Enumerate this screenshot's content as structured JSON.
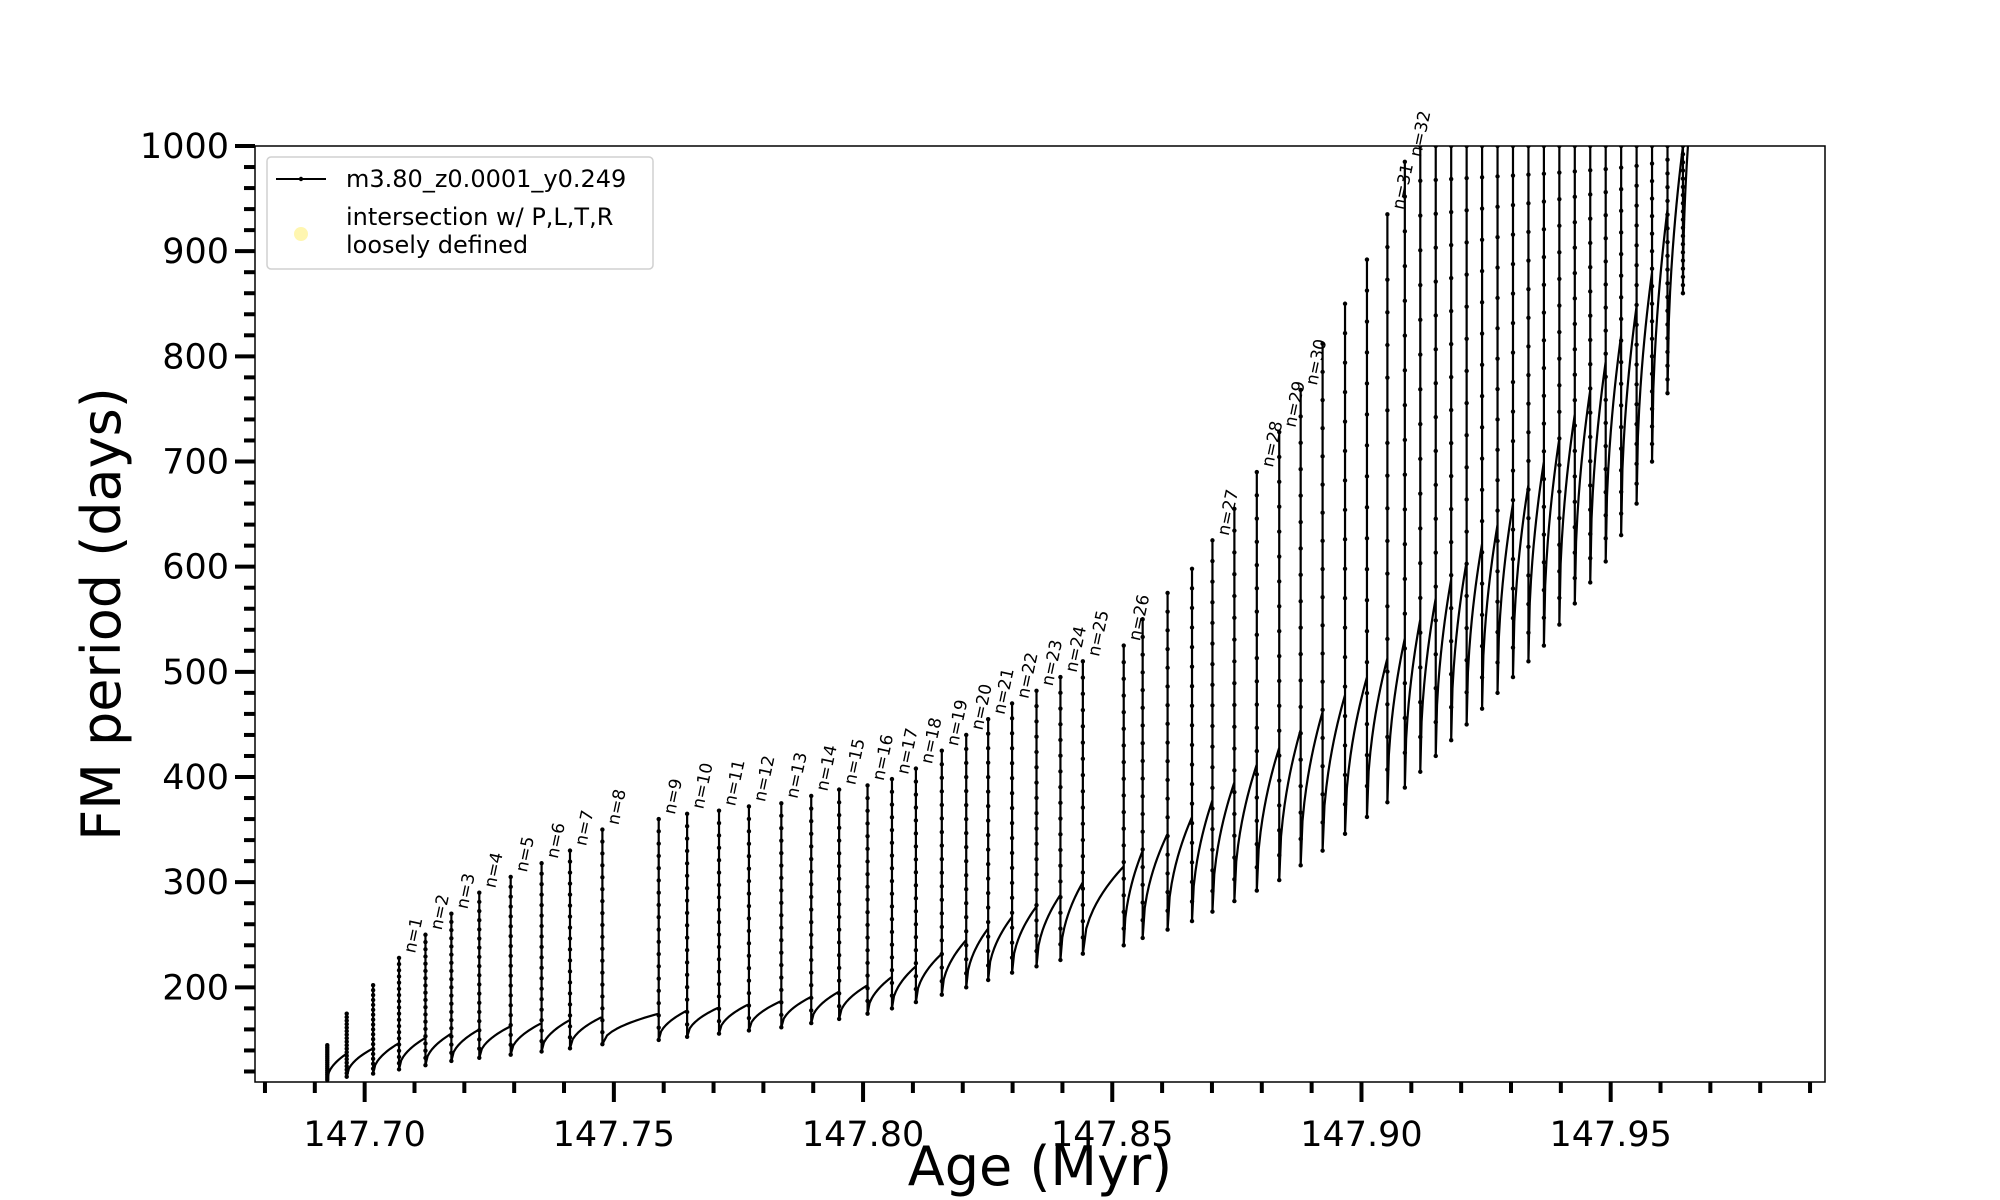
{
  "chart_data": {
    "type": "line",
    "xlabel": "Age (Myr)",
    "ylabel": "FM period (days)",
    "xlim": [
      147.678,
      147.993
    ],
    "ylim": [
      110,
      1000
    ],
    "x_major_ticks": [
      147.7,
      147.75,
      147.8,
      147.85,
      147.9,
      147.95
    ],
    "x_tick_labels": [
      "147.70",
      "147.75",
      "147.80",
      "147.85",
      "147.90",
      "147.95"
    ],
    "y_major_ticks": [
      200,
      300,
      400,
      500,
      600,
      700,
      800,
      900,
      1000
    ],
    "y_tick_labels": [
      "200",
      "300",
      "400",
      "500",
      "600",
      "700",
      "800",
      "900",
      "1000"
    ],
    "legend": {
      "placement": "upper-left",
      "entries": [
        {
          "label": "m3.80_z0.0001_y0.249",
          "marker": "line-dots",
          "color": "#000000"
        },
        {
          "label_lines": [
            "intersection w/ P,L,T,R",
            "loosely defined"
          ],
          "marker": "circle",
          "color": "#fff6b0"
        }
      ]
    },
    "series": [
      {
        "name": "m3.80_z0.0001_y0.249",
        "color": "#000000",
        "pulses": [
          {
            "age": 147.6925,
            "peak": 145,
            "dip": 112,
            "base": 130
          },
          {
            "age": 147.6964,
            "peak": 175,
            "dip": 115,
            "base": 137
          },
          {
            "age": 147.7017,
            "peak": 202,
            "dip": 118,
            "base": 142
          },
          {
            "age": 147.7069,
            "peak": 228,
            "dip": 122,
            "base": 147
          },
          {
            "age": 147.7122,
            "peak": 250,
            "dip": 126,
            "base": 152
          },
          {
            "age": 147.7174,
            "peak": 270,
            "dip": 130,
            "base": 156
          },
          {
            "age": 147.723,
            "peak": 290,
            "dip": 133,
            "base": 160
          },
          {
            "age": 147.7293,
            "peak": 305,
            "dip": 136,
            "base": 163
          },
          {
            "age": 147.7355,
            "peak": 318,
            "dip": 139,
            "base": 166
          },
          {
            "age": 147.7412,
            "peak": 330,
            "dip": 142,
            "base": 169
          },
          {
            "age": 147.7477,
            "peak": 350,
            "dip": 146,
            "base": 172
          },
          {
            "age": 147.759,
            "peak": 360,
            "dip": 150,
            "base": 175
          },
          {
            "age": 147.7647,
            "peak": 365,
            "dip": 153,
            "base": 178
          },
          {
            "age": 147.7711,
            "peak": 368,
            "dip": 156,
            "base": 181
          },
          {
            "age": 147.7771,
            "peak": 372,
            "dip": 159,
            "base": 184
          },
          {
            "age": 147.7836,
            "peak": 375,
            "dip": 162,
            "base": 187
          },
          {
            "age": 147.7896,
            "peak": 382,
            "dip": 166,
            "base": 191
          },
          {
            "age": 147.7952,
            "peak": 388,
            "dip": 170,
            "base": 196
          },
          {
            "age": 147.8009,
            "peak": 392,
            "dip": 175,
            "base": 202
          },
          {
            "age": 147.8058,
            "peak": 398,
            "dip": 180,
            "base": 210
          },
          {
            "age": 147.8106,
            "peak": 408,
            "dip": 186,
            "base": 220
          },
          {
            "age": 147.8158,
            "peak": 425,
            "dip": 193,
            "base": 232
          },
          {
            "age": 147.8207,
            "peak": 440,
            "dip": 200,
            "base": 245
          },
          {
            "age": 147.8251,
            "peak": 455,
            "dip": 207,
            "base": 256
          },
          {
            "age": 147.8299,
            "peak": 470,
            "dip": 214,
            "base": 267
          },
          {
            "age": 147.8348,
            "peak": 482,
            "dip": 220,
            "base": 277
          },
          {
            "age": 147.8396,
            "peak": 495,
            "dip": 226,
            "base": 288
          },
          {
            "age": 147.8441,
            "peak": 510,
            "dip": 232,
            "base": 300
          },
          {
            "age": 147.8523,
            "peak": 525,
            "dip": 240,
            "base": 315
          },
          {
            "age": 147.8561,
            "peak": 550,
            "dip": 247,
            "base": 330
          },
          {
            "age": 147.8611,
            "peak": 575,
            "dip": 255,
            "base": 346
          },
          {
            "age": 147.866,
            "peak": 598,
            "dip": 263,
            "base": 362
          },
          {
            "age": 147.8701,
            "peak": 625,
            "dip": 272,
            "base": 378
          },
          {
            "age": 147.8745,
            "peak": 655,
            "dip": 282,
            "base": 395
          },
          {
            "age": 147.879,
            "peak": 690,
            "dip": 292,
            "base": 412
          },
          {
            "age": 147.8835,
            "peak": 728,
            "dip": 302,
            "base": 428
          },
          {
            "age": 147.8878,
            "peak": 768,
            "dip": 316,
            "base": 445
          },
          {
            "age": 147.8922,
            "peak": 812,
            "dip": 330,
            "base": 462
          },
          {
            "age": 147.8967,
            "peak": 850,
            "dip": 346,
            "base": 478
          },
          {
            "age": 147.9011,
            "peak": 892,
            "dip": 362,
            "base": 495
          },
          {
            "age": 147.9052,
            "peak": 935,
            "dip": 376,
            "base": 513
          },
          {
            "age": 147.9087,
            "peak": 985,
            "dip": 390,
            "base": 532
          },
          {
            "age": 147.9118,
            "peak": 1000,
            "dip": 405,
            "base": 550
          },
          {
            "age": 147.9149,
            "peak": 1000,
            "dip": 420,
            "base": 570
          },
          {
            "age": 147.918,
            "peak": 1000,
            "dip": 435,
            "base": 588
          },
          {
            "age": 147.9211,
            "peak": 1000,
            "dip": 450,
            "base": 605
          },
          {
            "age": 147.9242,
            "peak": 1000,
            "dip": 465,
            "base": 622
          },
          {
            "age": 147.9273,
            "peak": 1000,
            "dip": 480,
            "base": 640
          },
          {
            "age": 147.9304,
            "peak": 1000,
            "dip": 495,
            "base": 660
          },
          {
            "age": 147.9335,
            "peak": 1000,
            "dip": 510,
            "base": 678
          },
          {
            "age": 147.9366,
            "peak": 1000,
            "dip": 525,
            "base": 700
          },
          {
            "age": 147.9397,
            "peak": 1000,
            "dip": 545,
            "base": 722
          },
          {
            "age": 147.9428,
            "peak": 1000,
            "dip": 565,
            "base": 745
          },
          {
            "age": 147.9459,
            "peak": 1000,
            "dip": 585,
            "base": 768
          },
          {
            "age": 147.949,
            "peak": 1000,
            "dip": 605,
            "base": 795
          },
          {
            "age": 147.9521,
            "peak": 1000,
            "dip": 630,
            "base": 820
          },
          {
            "age": 147.9552,
            "peak": 1000,
            "dip": 660,
            "base": 848
          },
          {
            "age": 147.9583,
            "peak": 1000,
            "dip": 700,
            "base": 880
          },
          {
            "age": 147.9614,
            "peak": 1000,
            "dip": 765,
            "base": 940
          },
          {
            "age": 147.9645,
            "peak": 1000,
            "dip": 860,
            "base": 1000
          }
        ]
      }
    ],
    "annotations": [
      {
        "text": "n=1",
        "x": 147.7069,
        "y": 228
      },
      {
        "text": "n=2",
        "x": 147.7122,
        "y": 250
      },
      {
        "text": "n=3",
        "x": 147.7174,
        "y": 270
      },
      {
        "text": "n=4",
        "x": 147.723,
        "y": 290
      },
      {
        "text": "n=5",
        "x": 147.7293,
        "y": 305
      },
      {
        "text": "n=6",
        "x": 147.7355,
        "y": 318
      },
      {
        "text": "n=7",
        "x": 147.7412,
        "y": 330
      },
      {
        "text": "n=8",
        "x": 147.7477,
        "y": 350
      },
      {
        "text": "n=9",
        "x": 147.759,
        "y": 360
      },
      {
        "text": "n=10",
        "x": 147.7647,
        "y": 365
      },
      {
        "text": "n=11",
        "x": 147.7711,
        "y": 368
      },
      {
        "text": "n=12",
        "x": 147.7771,
        "y": 372
      },
      {
        "text": "n=13",
        "x": 147.7836,
        "y": 375
      },
      {
        "text": "n=14",
        "x": 147.7896,
        "y": 382
      },
      {
        "text": "n=15",
        "x": 147.7952,
        "y": 388
      },
      {
        "text": "n=16",
        "x": 147.8009,
        "y": 392
      },
      {
        "text": "n=17",
        "x": 147.8058,
        "y": 398
      },
      {
        "text": "n=18",
        "x": 147.8106,
        "y": 408
      },
      {
        "text": "n=19",
        "x": 147.8158,
        "y": 425
      },
      {
        "text": "n=20",
        "x": 147.8207,
        "y": 440
      },
      {
        "text": "n=21",
        "x": 147.8251,
        "y": 455
      },
      {
        "text": "n=22",
        "x": 147.8299,
        "y": 470
      },
      {
        "text": "n=23",
        "x": 147.8348,
        "y": 482
      },
      {
        "text": "n=24",
        "x": 147.8396,
        "y": 495
      },
      {
        "text": "n=25",
        "x": 147.8441,
        "y": 510
      },
      {
        "text": "n=26",
        "x": 147.8523,
        "y": 525
      },
      {
        "text": "n=27",
        "x": 147.8701,
        "y": 625
      },
      {
        "text": "n=28",
        "x": 147.879,
        "y": 690
      },
      {
        "text": "n=29",
        "x": 147.8835,
        "y": 728
      },
      {
        "text": "n=30",
        "x": 147.8878,
        "y": 768
      },
      {
        "text": "n=31",
        "x": 147.9052,
        "y": 935
      },
      {
        "text": "n=32",
        "x": 147.9087,
        "y": 985
      }
    ]
  }
}
